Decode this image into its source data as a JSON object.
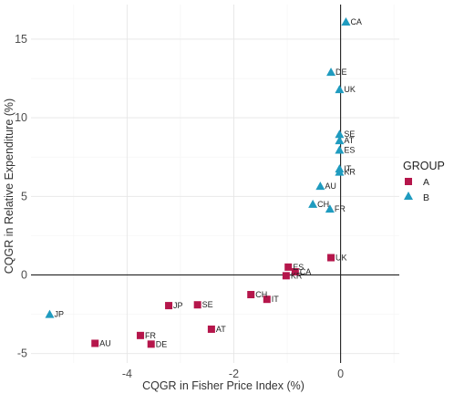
{
  "chart_data": {
    "type": "scatter",
    "title": "",
    "xlabel": "CQGR in Fisher Price Index (%)",
    "ylabel": "CQGR in Relative Expenditure (%)",
    "xlim": [
      -5.8,
      1.1
    ],
    "ylim": [
      -5.6,
      17.2
    ],
    "xticks": [
      -4,
      -2,
      0
    ],
    "xtick_labels": [
      "-4",
      "-2",
      "0"
    ],
    "yticks": [
      -5,
      0,
      5,
      10,
      15
    ],
    "ytick_labels": [
      "-5",
      "0",
      "5",
      "10",
      "15"
    ],
    "grid": true,
    "reference_lines": {
      "x": 0,
      "y": 0
    },
    "legend": {
      "title": "GROUP",
      "position": "right"
    },
    "series": [
      {
        "name": "A",
        "marker": "square",
        "color": "#b5164b",
        "points": [
          {
            "label": "UK",
            "x": -0.18,
            "y": 1.1
          },
          {
            "label": "ES",
            "x": -0.98,
            "y": 0.5
          },
          {
            "label": "CA",
            "x": -0.85,
            "y": 0.2
          },
          {
            "label": "KR",
            "x": -1.02,
            "y": -0.05
          },
          {
            "label": "CH",
            "x": -1.68,
            "y": -1.25
          },
          {
            "label": "IT",
            "x": -1.38,
            "y": -1.55
          },
          {
            "label": "JP",
            "x": -3.22,
            "y": -1.95
          },
          {
            "label": "SE",
            "x": -2.68,
            "y": -1.9
          },
          {
            "label": "AT",
            "x": -2.42,
            "y": -3.45
          },
          {
            "label": "FR",
            "x": -3.75,
            "y": -3.85
          },
          {
            "label": "DE",
            "x": -3.55,
            "y": -4.4
          },
          {
            "label": "AU",
            "x": -4.6,
            "y": -4.35
          }
        ]
      },
      {
        "name": "B",
        "marker": "triangle",
        "color": "#1f9bbf",
        "points": [
          {
            "label": "CA",
            "x": 0.1,
            "y": 16.1
          },
          {
            "label": "DE",
            "x": -0.18,
            "y": 12.9
          },
          {
            "label": "UK",
            "x": -0.02,
            "y": 11.8
          },
          {
            "label": "SE",
            "x": -0.02,
            "y": 8.95
          },
          {
            "label": "AT",
            "x": -0.02,
            "y": 8.55
          },
          {
            "label": "ES",
            "x": -0.02,
            "y": 7.95
          },
          {
            "label": "IT",
            "x": -0.02,
            "y": 6.75
          },
          {
            "label": "KR",
            "x": -0.02,
            "y": 6.55
          },
          {
            "label": "AU",
            "x": -0.38,
            "y": 5.65
          },
          {
            "label": "CH",
            "x": -0.52,
            "y": 4.5
          },
          {
            "label": "FR",
            "x": -0.2,
            "y": 4.2
          },
          {
            "label": "JP",
            "x": -5.45,
            "y": -2.5
          }
        ]
      }
    ]
  }
}
